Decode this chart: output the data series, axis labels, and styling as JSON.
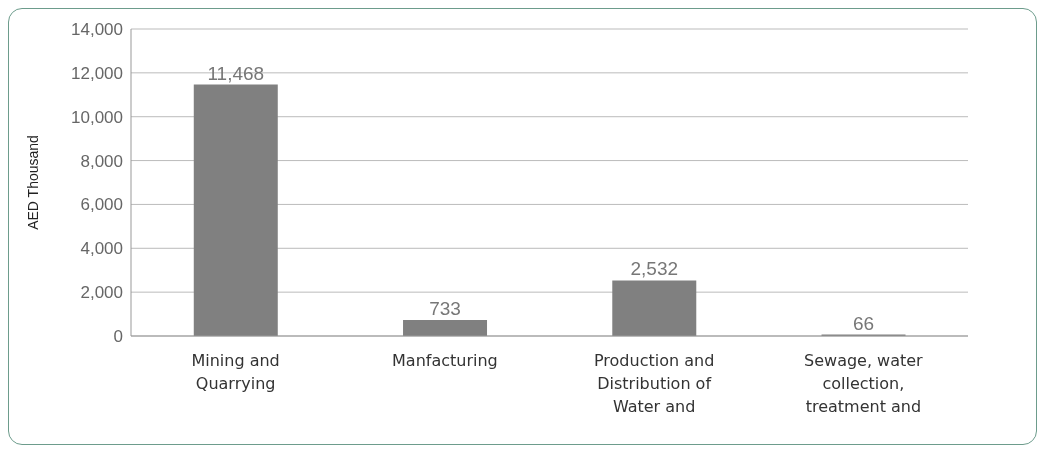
{
  "chart_data": {
    "type": "bar",
    "ylabel": "AED Thousand",
    "categories": [
      "Mining and Quarrying",
      "Manfacturing",
      "Production and Distribution of Water and",
      "Sewage, water collection, treatment and"
    ],
    "values": [
      11468,
      733,
      2532,
      66
    ],
    "color": "#808080",
    "ylim": [
      0,
      14000
    ],
    "yticks": [
      {
        "value": 0,
        "label": "0"
      },
      {
        "value": 2000,
        "label": "2,000"
      },
      {
        "value": 4000,
        "label": "4,000"
      },
      {
        "value": 6000,
        "label": "6,000"
      },
      {
        "value": 8000,
        "label": "8,000"
      },
      {
        "value": 10000,
        "label": "10,000"
      },
      {
        "value": 12000,
        "label": "12,000"
      },
      {
        "value": 14000,
        "label": "14,000"
      }
    ],
    "value_labels": [
      "11,468",
      "733",
      "2,532",
      "66"
    ],
    "grid": "y",
    "legend": false
  }
}
